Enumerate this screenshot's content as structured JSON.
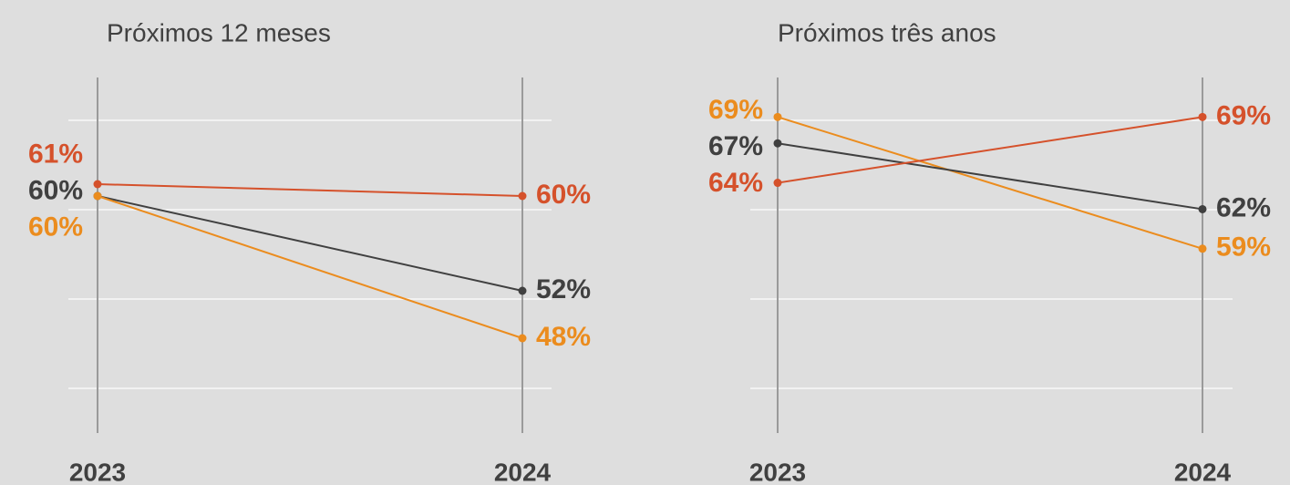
{
  "chart_data": [
    {
      "type": "line",
      "title": "Próximos 12 meses",
      "categories": [
        "2023",
        "2024"
      ],
      "ylim": [
        40,
        70
      ],
      "series": [
        {
          "color": "#d5512b",
          "values": [
            61,
            60
          ],
          "value_labels": [
            "61%",
            "60%"
          ]
        },
        {
          "color": "#404040",
          "values": [
            60,
            52
          ],
          "value_labels": [
            "60%",
            "52%"
          ]
        },
        {
          "color": "#eb8c1e",
          "values": [
            60,
            48
          ],
          "value_labels": [
            "60%",
            "48%"
          ]
        }
      ]
    },
    {
      "type": "line",
      "title": "Próximos três anos",
      "categories": [
        "2023",
        "2024"
      ],
      "ylim": [
        45,
        72
      ],
      "series": [
        {
          "color": "#eb8c1e",
          "values": [
            69,
            59
          ],
          "value_labels": [
            "69%",
            "59%"
          ]
        },
        {
          "color": "#404040",
          "values": [
            67,
            62
          ],
          "value_labels": [
            "67%",
            "62%"
          ]
        },
        {
          "color": "#d5512b",
          "values": [
            64,
            69
          ],
          "value_labels": [
            "64%",
            "69%"
          ]
        }
      ]
    }
  ]
}
